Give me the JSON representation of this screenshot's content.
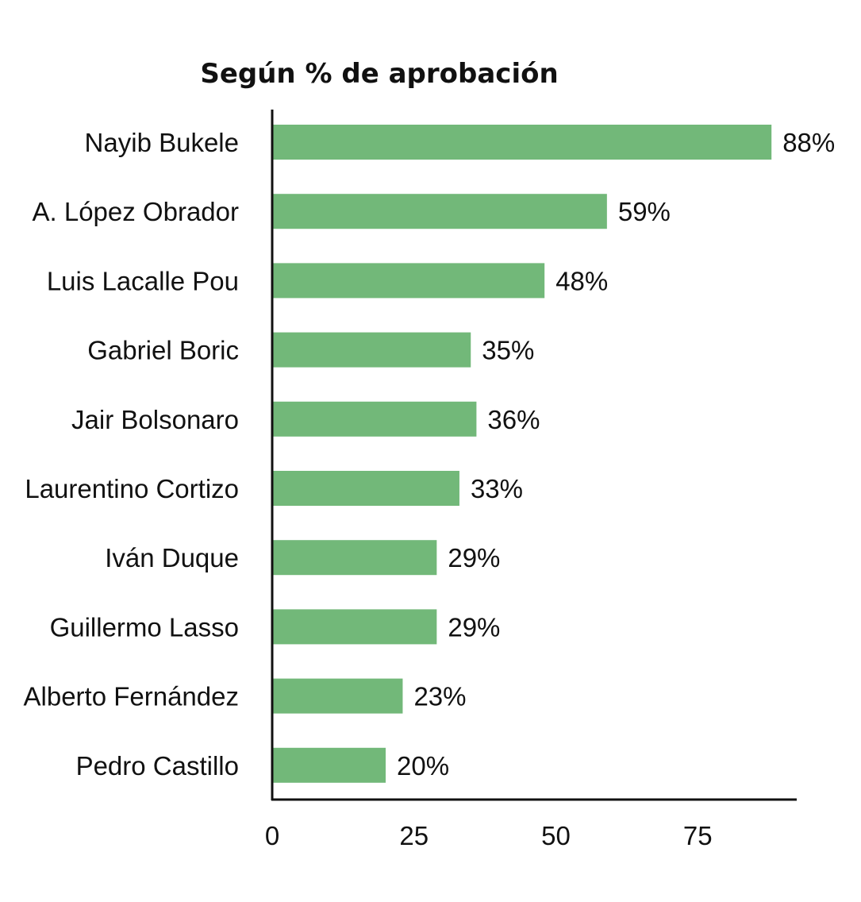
{
  "chart_data": {
    "type": "bar",
    "orientation": "horizontal",
    "title": "Según % de aprobación",
    "xlabel": "",
    "ylabel": "",
    "categories": [
      "Nayib Bukele",
      "A. López Obrador",
      "Luis Lacalle Pou",
      "Gabriel Boric",
      "Jair Bolsonaro",
      "Laurentino Cortizo",
      "Iván Duque",
      "Guillermo Lasso",
      "Alberto Fernández",
      "Pedro Castillo"
    ],
    "values": [
      88,
      59,
      48,
      35,
      36,
      33,
      29,
      29,
      23,
      20
    ],
    "value_labels": [
      "88%",
      "59%",
      "48%",
      "35%",
      "36%",
      "33%",
      "29%",
      "29%",
      "23%",
      "20%"
    ],
    "xlim": [
      0,
      92.5
    ],
    "xticks": [
      0,
      25,
      50,
      75
    ],
    "xtick_labels": [
      "0",
      "25",
      "50",
      "75"
    ],
    "grid": false,
    "bar_color": "#72b879"
  }
}
